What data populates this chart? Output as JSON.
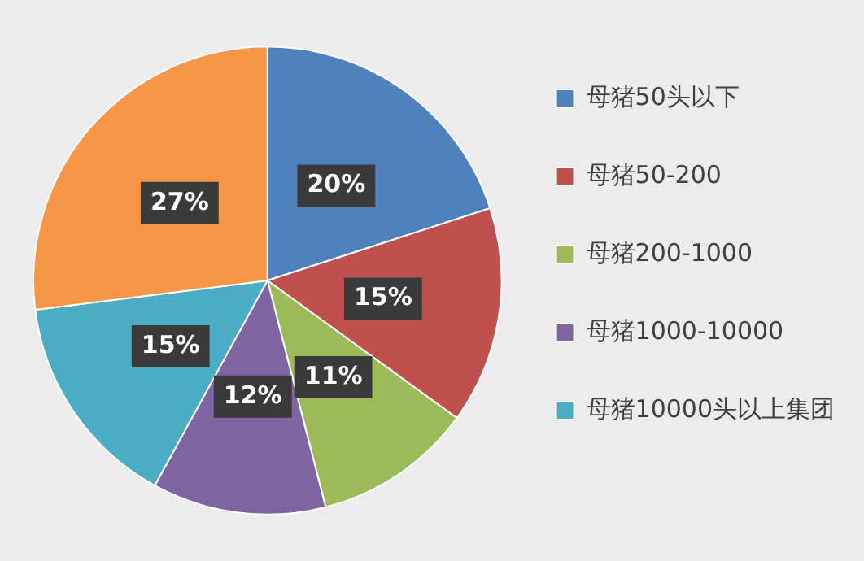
{
  "chart_data": {
    "type": "pie",
    "categories": [
      "母猪50头以下",
      "母猪50-200",
      "母猪200-1000",
      "母猪1000-10000",
      "母猪10000头以上集团",
      null
    ],
    "values": [
      20,
      15,
      11,
      12,
      15,
      27
    ],
    "colors": [
      "#4f81bd",
      "#c0504d",
      "#9bbb59",
      "#8064a2",
      "#4bacc6",
      "#f79646"
    ],
    "value_labels": [
      "20%",
      "15%",
      "11%",
      "12%",
      "15%",
      "27%"
    ],
    "legend": "right"
  }
}
